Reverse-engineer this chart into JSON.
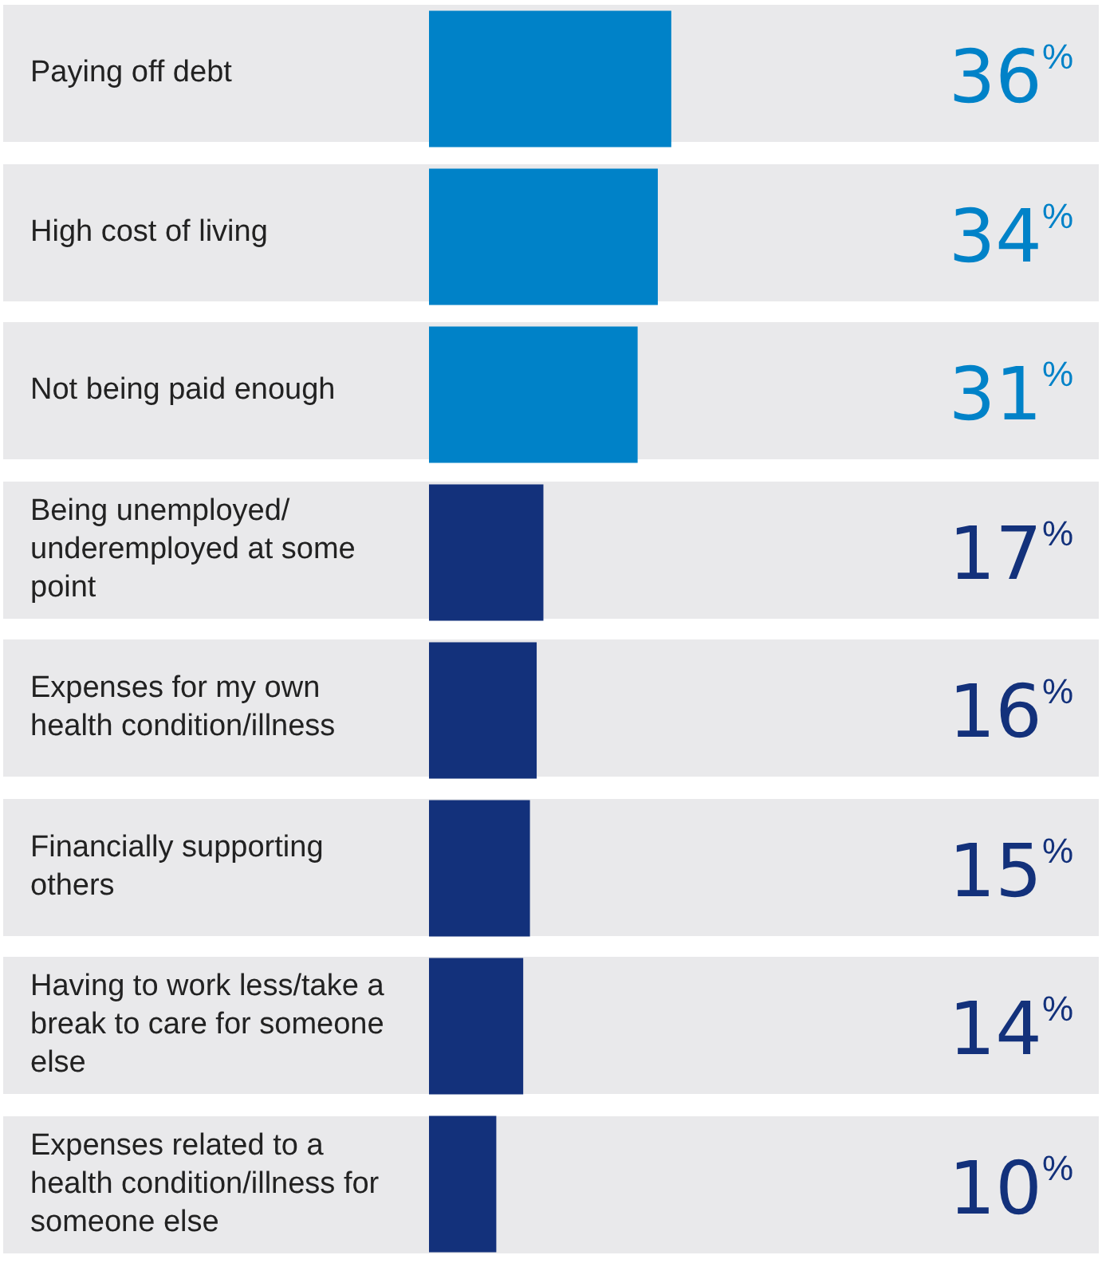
{
  "chart_data": {
    "type": "bar",
    "orientation": "horizontal",
    "categories": [
      "Paying off debt",
      "High cost of living",
      "Not being paid enough",
      "Being unemployed/ underemployed at some point",
      "Expenses for my own health condition/illness",
      "Financially supporting others",
      "Having to work less/take a break to care for someone else",
      "Expenses related to a health condition/illness for someone else"
    ],
    "values": [
      36,
      34,
      31,
      17,
      16,
      15,
      14,
      10
    ],
    "colors": [
      "#0082c8",
      "#0082c8",
      "#0082c8",
      "#13317b",
      "#13317b",
      "#13317b",
      "#13317b",
      "#13317b"
    ],
    "value_labels": [
      "36%",
      "34%",
      "31%",
      "17%",
      "16%",
      "15%",
      "14%",
      "10%"
    ],
    "legend": false
  }
}
